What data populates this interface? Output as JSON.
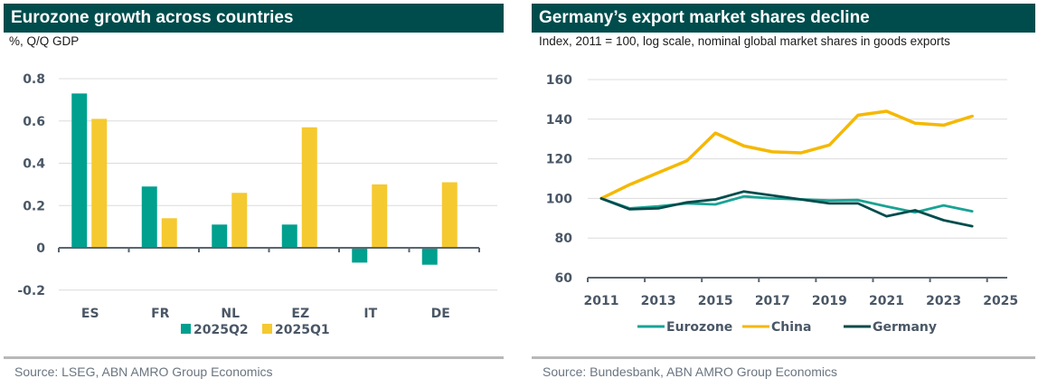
{
  "colors": {
    "header_bg": "#004c4c",
    "teal": "#00a08e",
    "yellow": "#f5c930",
    "china": "#f5b800",
    "germany": "#004c4c",
    "eurozone": "#18a394",
    "axis": "#5a6670",
    "grid": "#dcdcdc"
  },
  "left": {
    "title": "Eurozone growth across countries",
    "subtitle": "%, Q/Q GDP",
    "source": "Source: LSEG, ABN AMRO Group Economics"
  },
  "right": {
    "title": "Germany’s export market shares decline",
    "subtitle": "Index, 2011 = 100, log scale, nominal global market shares in goods exports",
    "source": "Source: Bundesbank, ABN AMRO Group Economics"
  },
  "chart_data": [
    {
      "type": "bar",
      "title": "Eurozone growth across countries",
      "ylabel": "%, Q/Q GDP",
      "xlabel": "",
      "categories": [
        "ES",
        "FR",
        "NL",
        "EZ",
        "IT",
        "DE"
      ],
      "series": [
        {
          "name": "2025Q2",
          "color": "#00a08e",
          "values": [
            0.73,
            0.29,
            0.11,
            0.11,
            -0.07,
            -0.08
          ]
        },
        {
          "name": "2025Q1",
          "color": "#f5c930",
          "values": [
            0.61,
            0.14,
            0.26,
            0.57,
            0.3,
            0.31
          ]
        }
      ],
      "ylim": [
        -0.2,
        0.8
      ],
      "yticks": [
        -0.2,
        0,
        0.2,
        0.4,
        0.6,
        0.8
      ],
      "ytick_labels": [
        "-0.2",
        "0",
        "0.2",
        "0.4",
        "0.6",
        "0.8"
      ],
      "grid": true,
      "legend": "bottom"
    },
    {
      "type": "line",
      "title": "Germany’s export market shares decline",
      "ylabel": "Index, 2011 = 100, log scale, nominal global market shares in goods exports",
      "xlabel": "",
      "x": [
        2011,
        2012,
        2013,
        2014,
        2015,
        2016,
        2017,
        2018,
        2019,
        2020,
        2021,
        2022,
        2023,
        2024
      ],
      "series": [
        {
          "name": "Eurozone",
          "color": "#18a394",
          "values": [
            100,
            95,
            96,
            97.5,
            97,
            101,
            100,
            99.5,
            99,
            99.2,
            96,
            93,
            96.5,
            93.5
          ]
        },
        {
          "name": "China",
          "color": "#f5b800",
          "values": [
            100,
            107,
            113,
            119,
            133,
            126.5,
            123.5,
            123,
            127,
            142,
            144,
            138,
            137,
            141.5
          ]
        },
        {
          "name": "Germany",
          "color": "#004c4c",
          "values": [
            100,
            94.5,
            95,
            98,
            99.5,
            103.5,
            101.5,
            99.5,
            97.5,
            97.5,
            91,
            94,
            89,
            86
          ]
        }
      ],
      "xlim": [
        2011,
        2025
      ],
      "xticks": [
        2011,
        2013,
        2015,
        2017,
        2019,
        2021,
        2023,
        2025
      ],
      "xtick_labels": [
        "2011",
        "2013",
        "2015",
        "2017",
        "2019",
        "2021",
        "2023",
        "2025"
      ],
      "ylim": [
        60,
        160
      ],
      "yticks": [
        60,
        80,
        100,
        120,
        140,
        160
      ],
      "ytick_labels": [
        "60",
        "80",
        "100",
        "120",
        "140",
        "160"
      ],
      "grid": true,
      "legend": "bottom"
    }
  ]
}
